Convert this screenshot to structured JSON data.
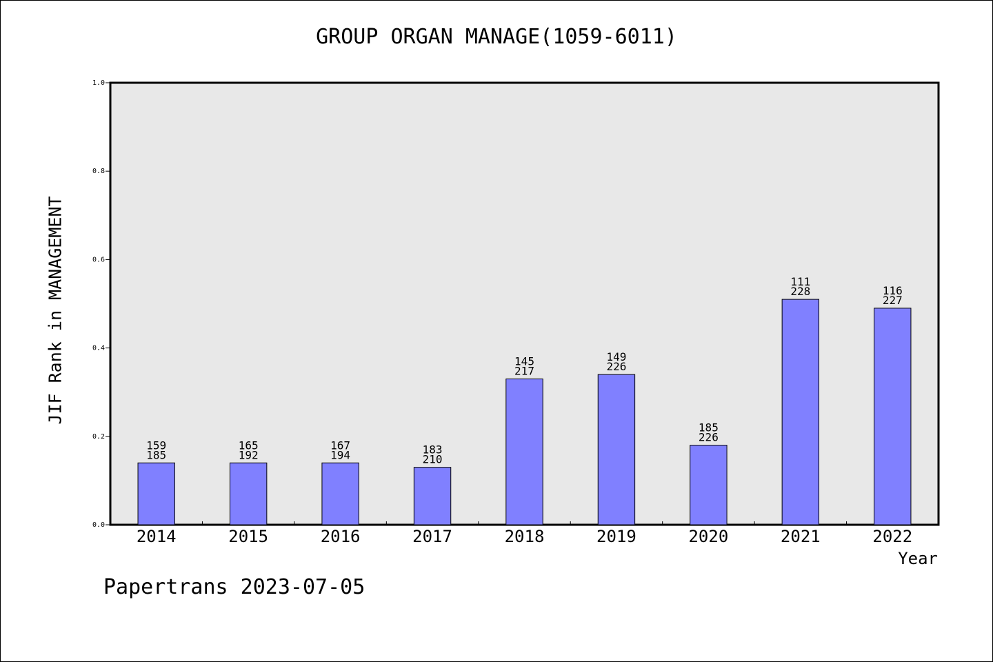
{
  "footer": {
    "note": "Papertrans 2023-07-05"
  },
  "chart_data": {
    "type": "bar",
    "title": "GROUP ORGAN MANAGE(1059-6011)",
    "xlabel": "Year",
    "ylabel": "JIF Rank in MANAGEMENT",
    "categories": [
      "2014",
      "2015",
      "2016",
      "2017",
      "2018",
      "2019",
      "2020",
      "2021",
      "2022"
    ],
    "values": [
      0.14,
      0.14,
      0.14,
      0.13,
      0.33,
      0.34,
      0.18,
      0.51,
      0.49
    ],
    "bar_labels": [
      [
        "159",
        "185"
      ],
      [
        "165",
        "192"
      ],
      [
        "167",
        "194"
      ],
      [
        "183",
        "210"
      ],
      [
        "145",
        "217"
      ],
      [
        "149",
        "226"
      ],
      [
        "185",
        "226"
      ],
      [
        "111",
        "228"
      ],
      [
        "116",
        "227"
      ]
    ],
    "ylim": [
      0.0,
      1.0
    ],
    "yticks": [
      "0.0",
      "0.2",
      "0.4",
      "0.6",
      "0.8",
      "1.0"
    ],
    "grid": false,
    "colors": {
      "bar": "#8080ff",
      "plot_background": "#e8e8e8"
    }
  }
}
